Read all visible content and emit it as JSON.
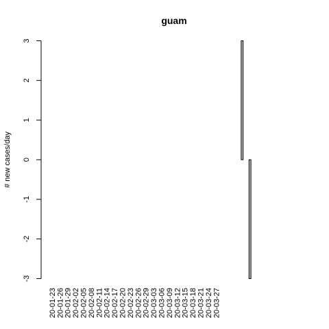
{
  "chart_data": {
    "type": "bar",
    "title": "guam",
    "xlabel": "",
    "ylabel": "# new cases/day",
    "ylim": [
      -3,
      3
    ],
    "yticks": [
      -3,
      -2,
      -1,
      0,
      1,
      2,
      3
    ],
    "x_tick_labels": [
      "20-01-23",
      "20-01-26",
      "20-01-29",
      "20-02-02",
      "20-02-05",
      "20-02-08",
      "20-02-11",
      "20-02-14",
      "20-02-17",
      "20-02-20",
      "20-02-23",
      "20-02-26",
      "20-02-29",
      "20-03-03",
      "20-03-06",
      "20-03-09",
      "20-03-12",
      "20-03-15",
      "20-03-18",
      "20-03-21",
      "20-03-24",
      "20-03-27"
    ],
    "start_date": "2020-01-23",
    "values": [
      0,
      0,
      0,
      0,
      0,
      0,
      0,
      0,
      0,
      0,
      0,
      0,
      0,
      0,
      0,
      0,
      0,
      0,
      0,
      0,
      0,
      0,
      0,
      0,
      0,
      0,
      0,
      0,
      0,
      0,
      0,
      0,
      0,
      0,
      0,
      0,
      0,
      0,
      0,
      0,
      0,
      0,
      0,
      0,
      0,
      0,
      0,
      0,
      0,
      0,
      0,
      0,
      0,
      0,
      0,
      0,
      0,
      0,
      0,
      0,
      0,
      0,
      0,
      0,
      0,
      0,
      0,
      0,
      0,
      0,
      0,
      0,
      0,
      3,
      0,
      0,
      -3,
      0,
      0,
      0,
      0,
      0,
      0,
      0,
      0,
      0,
      0,
      0,
      0,
      0,
      0,
      0,
      0,
      0,
      0
    ],
    "bar_color": "#bebebe",
    "grid": false
  }
}
